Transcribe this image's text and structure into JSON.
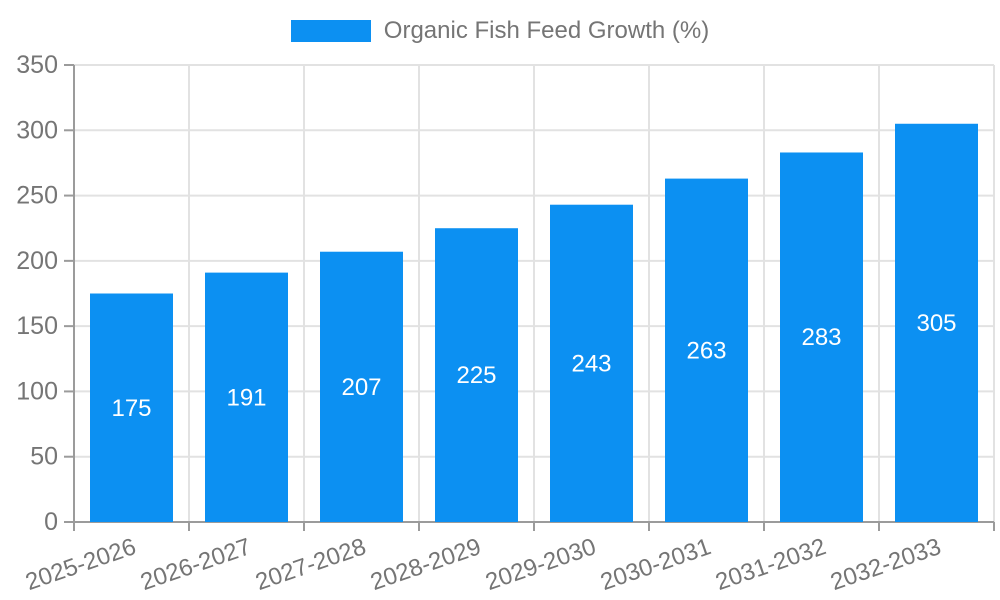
{
  "colors": {
    "bar": "#0C90F2",
    "axis_line": "#9B9B9B",
    "grid": "#E2E2E2",
    "tick_text": "#757575",
    "value_text": "#FFFFFF",
    "background": "#FFFFFF"
  },
  "chart_data": {
    "type": "bar",
    "title": "",
    "xlabel": "",
    "ylabel": "",
    "categories": [
      "2025-2026",
      "2026-2027",
      "2027-2028",
      "2028-2029",
      "2029-2030",
      "2030-2031",
      "2031-2032",
      "2032-2033"
    ],
    "series": [
      {
        "name": "Organic Fish Feed Growth (%)",
        "values": [
          175,
          191,
          207,
          225,
          243,
          263,
          283,
          305
        ]
      }
    ],
    "ylim": [
      0,
      350
    ],
    "yticks": [
      0,
      50,
      100,
      150,
      200,
      250,
      300,
      350
    ],
    "grid": true,
    "legend_position": "top-center",
    "value_label_position": "inside-center",
    "x_tick_rotation_deg": -19
  }
}
